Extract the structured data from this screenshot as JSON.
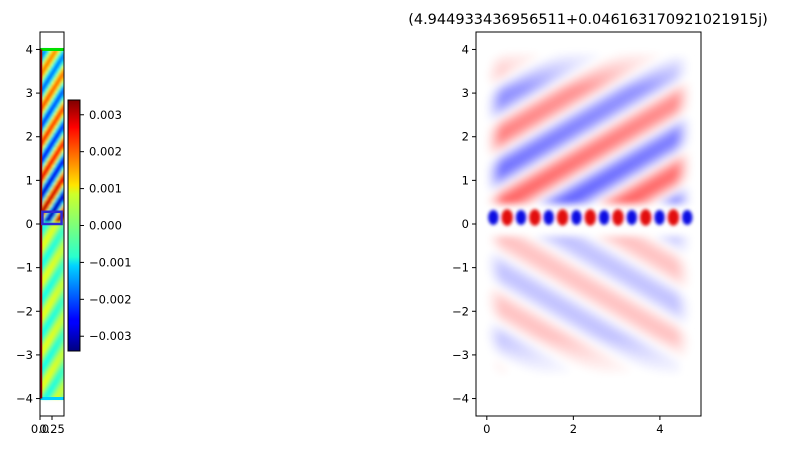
{
  "chart_data": [
    {
      "type": "heatmap",
      "panel": "left",
      "xlim": [
        0,
        0.5
      ],
      "ylim": [
        -4.4,
        4.4
      ],
      "x_ticks": [
        0.0,
        0.25
      ],
      "x_tick_labels": [
        "0.0",
        "0.25"
      ],
      "y_ticks": [
        -4,
        -3,
        -2,
        -1,
        0,
        1,
        2,
        3,
        4
      ],
      "y_tick_labels": [
        "−4",
        "−3",
        "−2",
        "−1",
        "0",
        "1",
        "2",
        "3",
        "4"
      ],
      "colormap": "jet",
      "overlays": [
        {
          "kind": "boundary-line",
          "y": 4.0,
          "color": "#00e000"
        },
        {
          "kind": "boundary-line",
          "y": -4.0,
          "color": "#00cfff"
        },
        {
          "kind": "boundary-line",
          "x": 0.0,
          "color": "#8b0000"
        },
        {
          "kind": "rectangle",
          "x": [
            0.05,
            0.45
          ],
          "y": [
            0.0,
            0.28
          ],
          "color": "#2b2bd6"
        }
      ]
    },
    {
      "type": "colorbar",
      "panel": "colorbar",
      "colormap": "jet",
      "vmin": -0.0034,
      "vmax": 0.0034,
      "ticks": [
        0.003,
        0.002,
        0.001,
        0.0,
        -0.001,
        -0.002,
        -0.003
      ],
      "tick_labels": [
        "0.003",
        "0.002",
        "0.001",
        "0.000",
        "−0.001",
        "−0.002",
        "−0.003"
      ]
    },
    {
      "type": "heatmap",
      "panel": "right",
      "title": "(4.944933436956511+0.046163170921021915j)",
      "xlim": [
        -0.25,
        4.95
      ],
      "ylim": [
        -4.4,
        4.4
      ],
      "x_ticks": [
        0,
        2,
        4
      ],
      "x_tick_labels": [
        "0",
        "2",
        "4"
      ],
      "y_ticks": [
        -4,
        -3,
        -2,
        -1,
        0,
        1,
        2,
        3,
        4
      ],
      "y_tick_labels": [
        "−4",
        "−3",
        "−2",
        "−1",
        "0",
        "1",
        "2",
        "3",
        "4"
      ],
      "colormap": "bwr",
      "field_extent": {
        "x": [
          0,
          4.7
        ],
        "y": [
          -3.5,
          4.0
        ]
      },
      "waveguide_row": {
        "y": 0.15,
        "peak_count": 15
      }
    }
  ],
  "colors": {
    "axes": "#000000",
    "background": "#ffffff"
  }
}
